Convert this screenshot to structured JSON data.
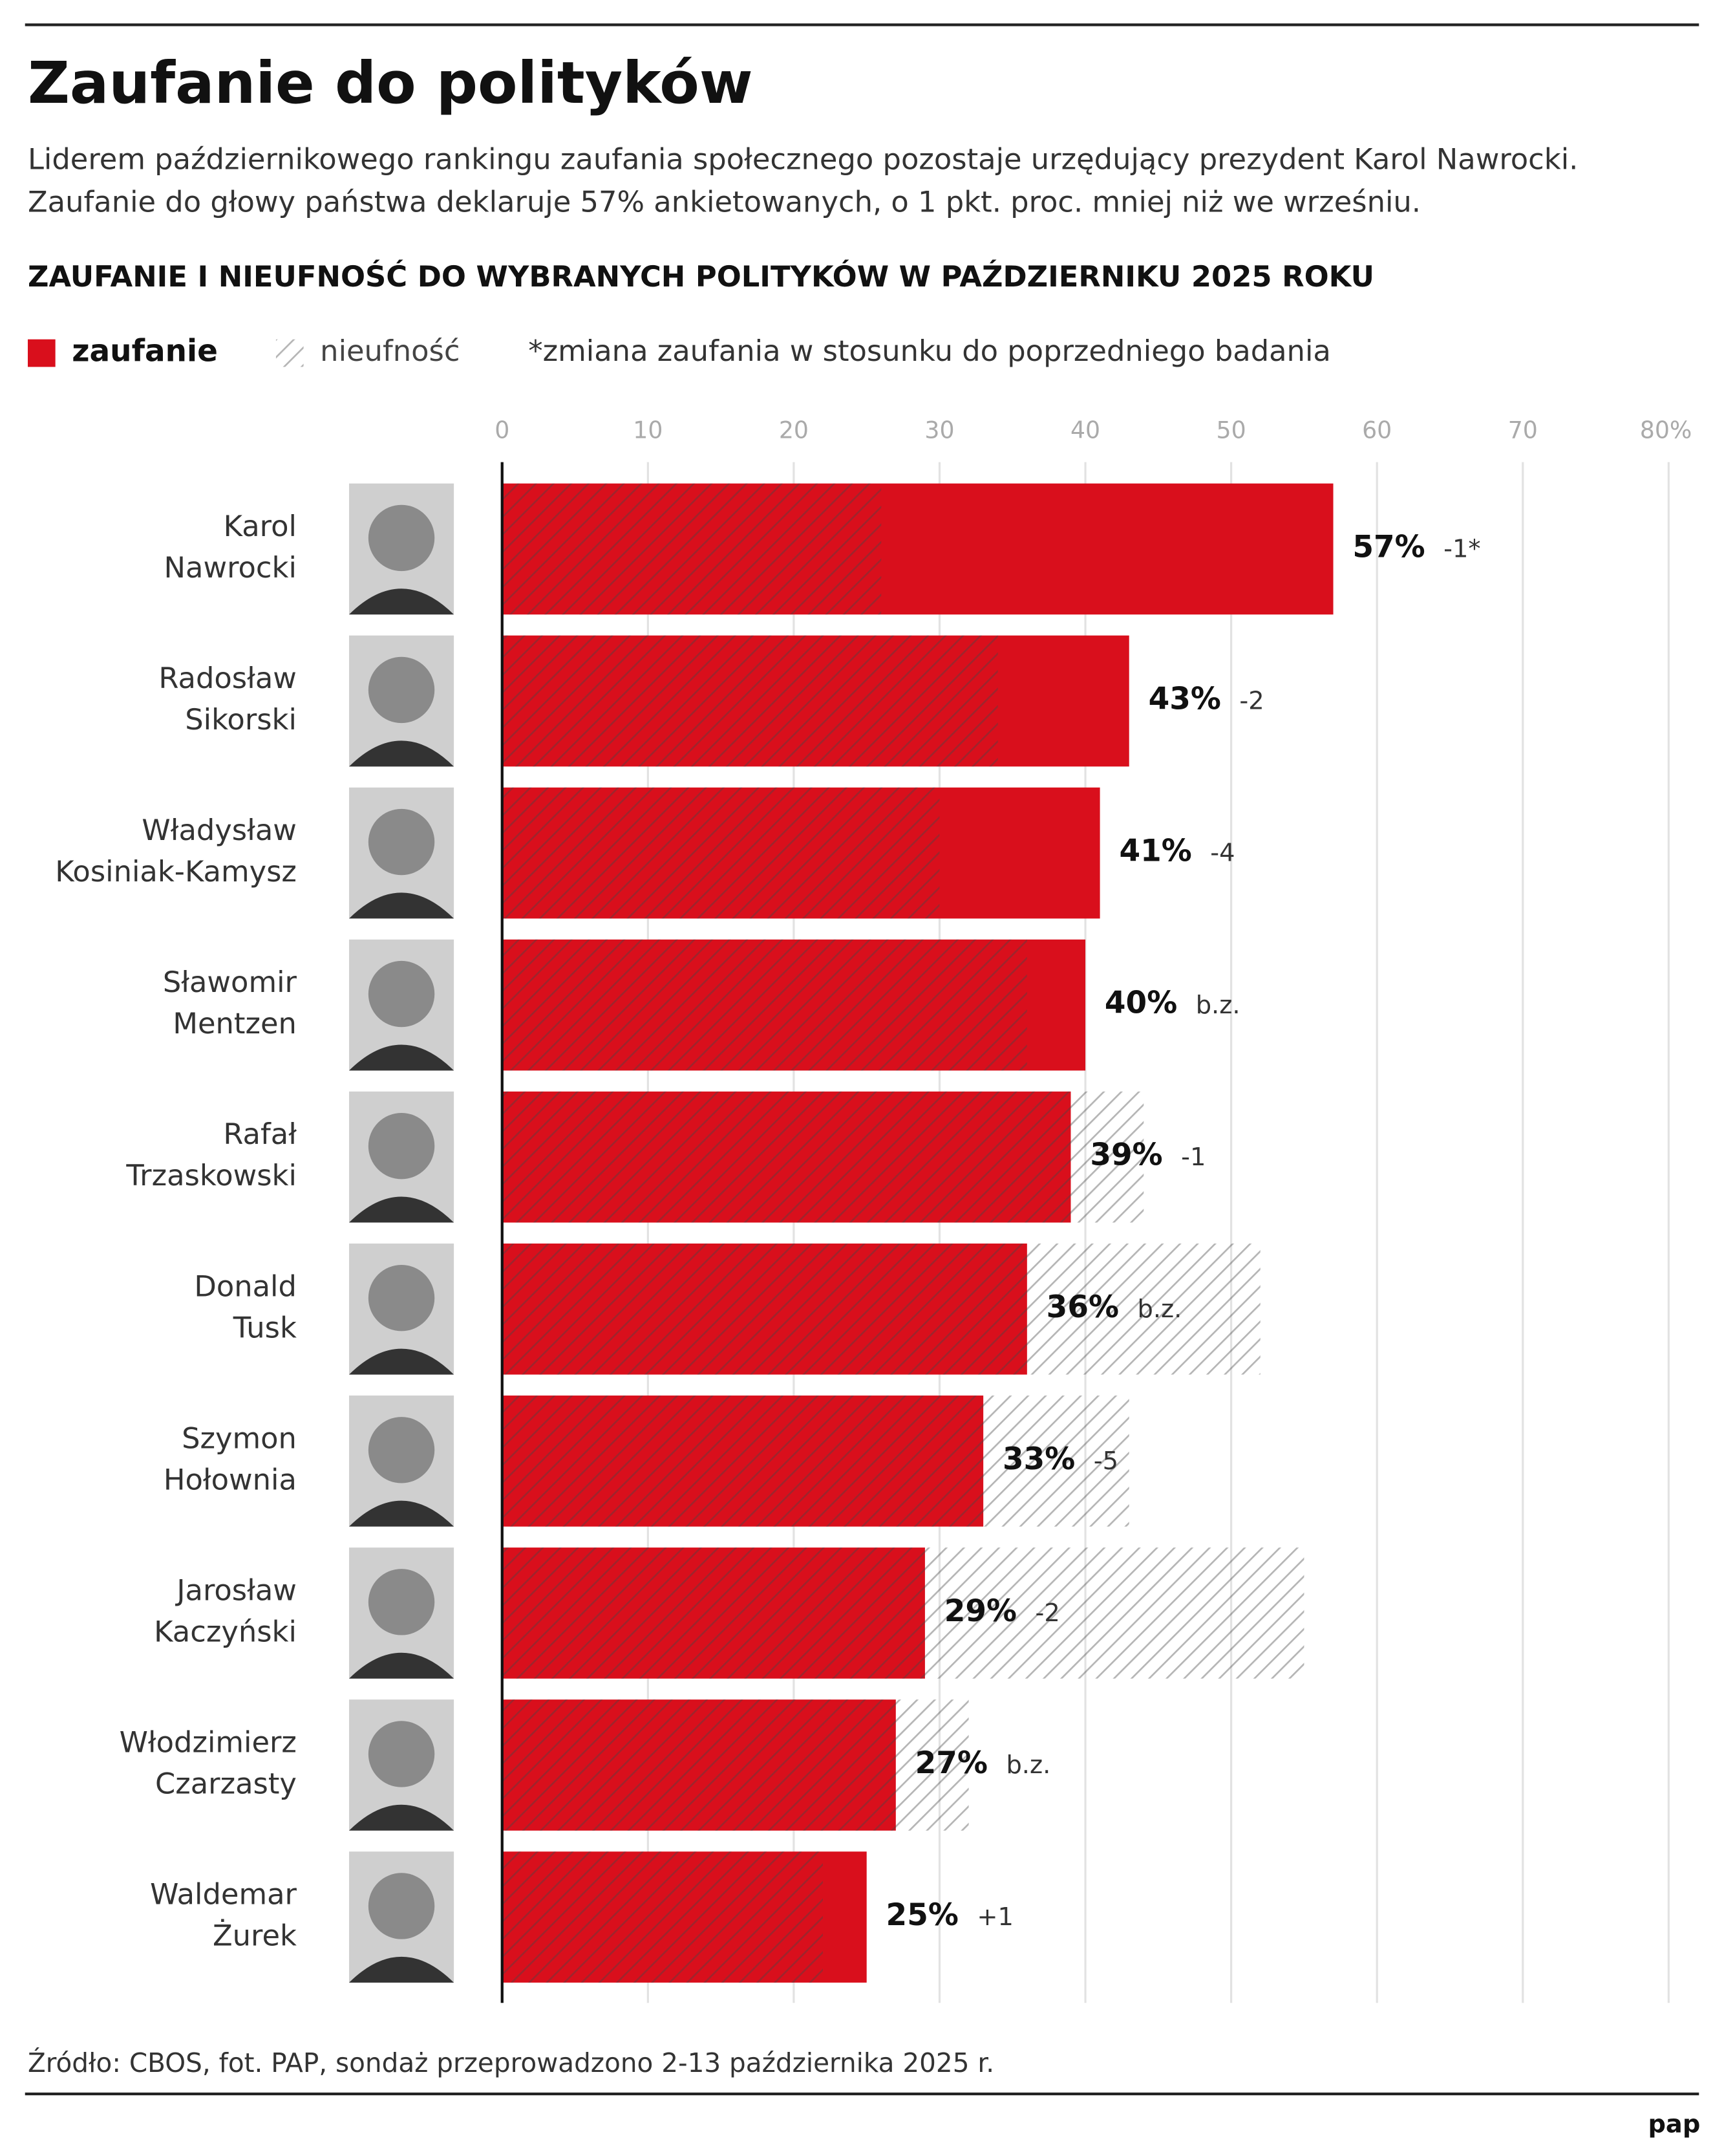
{
  "chart_data": {
    "type": "bar",
    "title": "Zaufanie do polityków",
    "subtitle": [
      "Liderem październikowego rankingu zaufania społecznego pozostaje urzędujący prezydent Karol Nawrocki.",
      "Zaufanie do głowy państwa deklaruje 57% ankietowanych, o 1 pkt. proc. mniej niż we wrześniu."
    ],
    "chart_title": "ZAUFANIE I NIEUFNOŚĆ DO WYBRANYCH POLITYKÓW W PAŹDZIERNIKU 2025 ROKU",
    "legend_note": "*zmiana zaufania w stosunku do poprzedniego badania",
    "categories": [
      "Karol Nawrocki",
      "Radosław Sikorski",
      "Władysław Kosiniak-Kamysz",
      "Sławomir Mentzen",
      "Rafał Trzaskowski",
      "Donald Tusk",
      "Szymon Hołownia",
      "Jarosław Kaczyński",
      "Włodzimierz Czarzasty",
      "Waldemar Żurek"
    ],
    "series": [
      {
        "name": "zaufanie",
        "color": "#d90f1c",
        "values": [
          57,
          43,
          41,
          40,
          39,
          36,
          33,
          29,
          27,
          25
        ],
        "value_labels": [
          "57%",
          "43%",
          "41%",
          "40%",
          "39%",
          "36%",
          "33%",
          "29%",
          "27%",
          "25%"
        ]
      },
      {
        "name": "nieufność",
        "color": "#9a9a9a",
        "values": [
          26,
          34,
          30,
          36,
          44,
          52,
          43,
          55,
          32,
          22
        ]
      }
    ],
    "changes": [
      "-1*",
      "-2",
      "-4",
      "b.z.",
      "-1",
      "b.z.",
      "-5",
      "-2",
      "b.z.",
      "+1"
    ],
    "xlim": [
      0,
      80
    ],
    "xticks": [
      0,
      10,
      20,
      30,
      40,
      50,
      60,
      70,
      {
        "value": 80,
        "label": "80%"
      }
    ],
    "grid": true,
    "source": "Źródło: CBOS, fot. PAP, sondaż przeprowadzono 2-13 października 2025 r.",
    "logo": "pap"
  }
}
